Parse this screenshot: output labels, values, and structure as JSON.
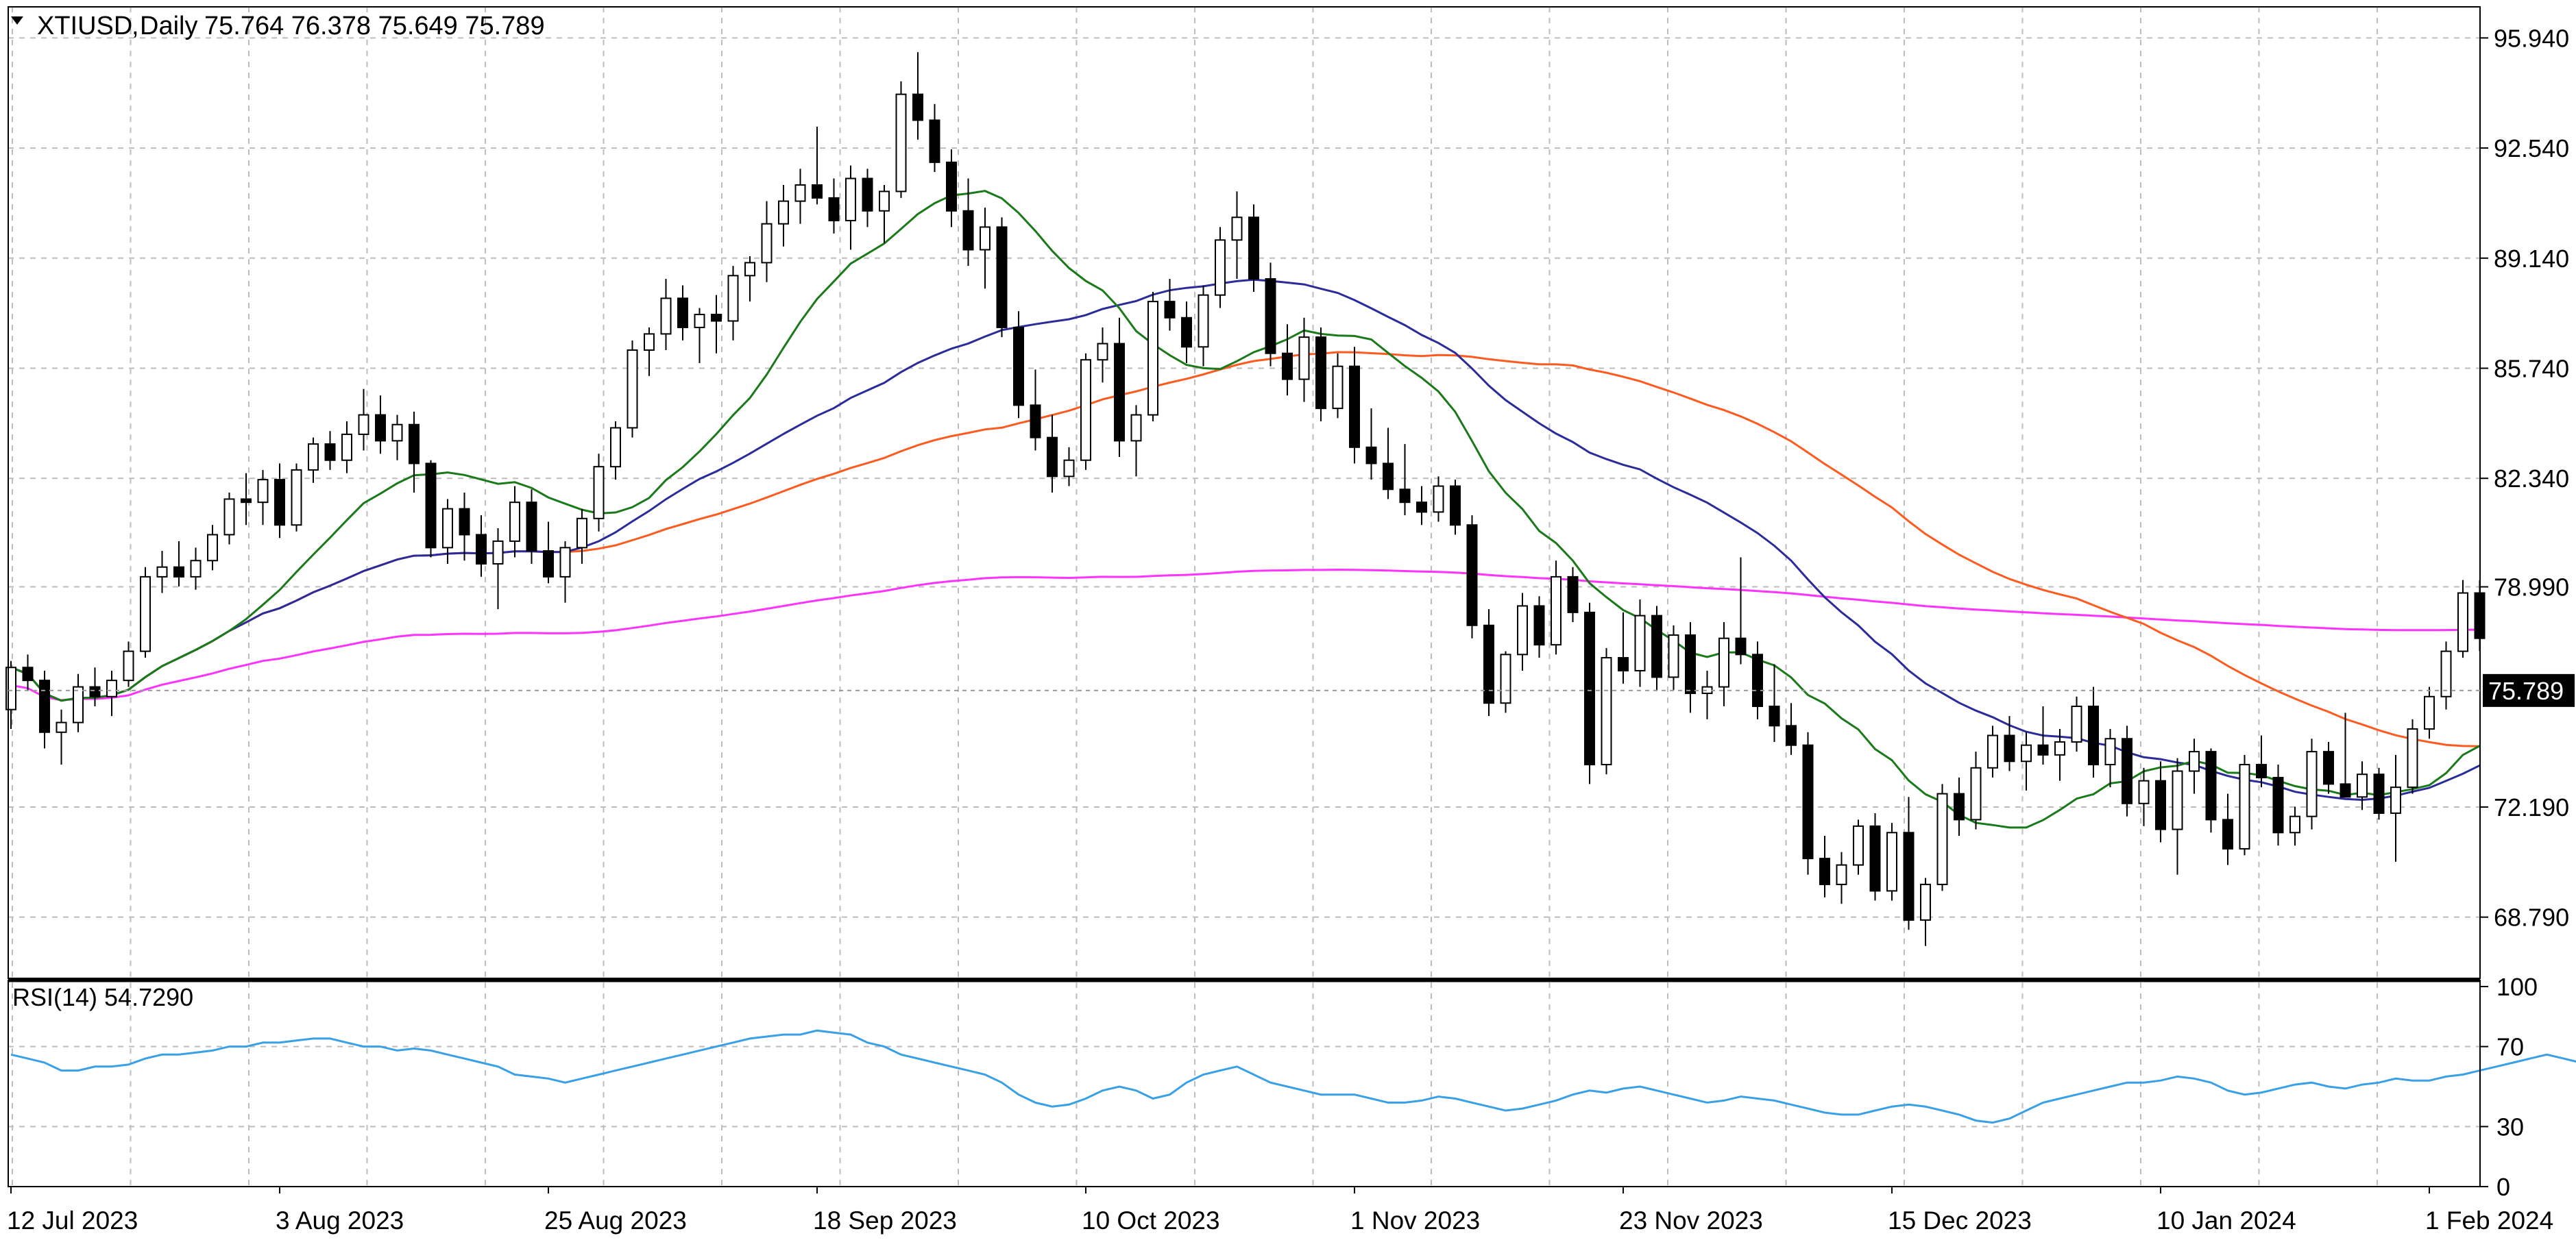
{
  "header": {
    "symbol": "XTIUSD",
    "timeframe": "Daily",
    "ohlc": "75.764 76.378 75.649 75.789"
  },
  "rsi_label": "RSI(14) 54.7290",
  "current_price": "75.789",
  "colors": {
    "bull": "#ffffff",
    "bear": "#000000",
    "wick": "#000000",
    "ma_fast": "#1a7a1a",
    "ma_medium": "#2b2b9a",
    "ma_slow": "#ff5a1f",
    "ma_long": "#ff33ff",
    "rsi": "#3aa0e6",
    "grid": "#bdbdbd"
  },
  "chart_data": [
    {
      "type": "candlestick",
      "yticks": [
        "95.940",
        "92.540",
        "89.140",
        "85.740",
        "82.340",
        "78.990",
        "72.190",
        "68.790"
      ],
      "ylim": [
        66.9,
        96.9
      ],
      "xlabels": [
        {
          "label": "12 Jul 2023",
          "index": 0
        },
        {
          "label": "3 Aug 2023",
          "index": 16
        },
        {
          "label": "25 Aug 2023",
          "index": 32
        },
        {
          "label": "18 Sep 2023",
          "index": 48
        },
        {
          "label": "10 Oct 2023",
          "index": 64
        },
        {
          "label": "1 Nov 2023",
          "index": 80
        },
        {
          "label": "23 Nov 2023",
          "index": 96
        },
        {
          "label": "15 Dec 2023",
          "index": 112
        },
        {
          "label": "10 Jan 2024",
          "index": 128
        },
        {
          "label": "1 Feb 2024",
          "index": 144
        }
      ],
      "candles": [
        [
          75.2,
          76.7,
          74.6,
          76.5
        ],
        [
          76.5,
          76.9,
          75.8,
          76.1
        ],
        [
          76.1,
          76.4,
          74.0,
          74.5
        ],
        [
          74.5,
          75.2,
          73.5,
          74.8
        ],
        [
          74.8,
          76.3,
          74.5,
          75.9
        ],
        [
          75.9,
          76.5,
          75.3,
          75.6
        ],
        [
          75.6,
          76.4,
          75.0,
          76.1
        ],
        [
          76.1,
          77.3,
          75.9,
          77.0
        ],
        [
          77.0,
          79.6,
          76.8,
          79.3
        ],
        [
          79.3,
          80.1,
          78.8,
          79.6
        ],
        [
          79.6,
          80.4,
          79.0,
          79.3
        ],
        [
          79.3,
          80.2,
          78.9,
          79.8
        ],
        [
          79.8,
          80.9,
          79.5,
          80.6
        ],
        [
          80.6,
          81.9,
          80.3,
          81.7
        ],
        [
          81.7,
          82.5,
          80.9,
          81.6
        ],
        [
          81.6,
          82.6,
          80.9,
          82.3
        ],
        [
          82.3,
          82.8,
          80.5,
          80.9
        ],
        [
          80.9,
          82.8,
          80.7,
          82.6
        ],
        [
          82.6,
          83.6,
          82.2,
          83.4
        ],
        [
          83.4,
          83.8,
          82.6,
          82.9
        ],
        [
          82.9,
          84.1,
          82.5,
          83.7
        ],
        [
          83.7,
          85.1,
          83.2,
          84.3
        ],
        [
          84.3,
          84.9,
          83.1,
          83.5
        ],
        [
          83.5,
          84.3,
          82.9,
          84.0
        ],
        [
          84.0,
          84.4,
          81.9,
          82.8
        ],
        [
          82.8,
          82.9,
          79.9,
          80.2
        ],
        [
          80.2,
          81.7,
          79.7,
          81.4
        ],
        [
          81.4,
          81.9,
          79.8,
          80.6
        ],
        [
          80.6,
          81.2,
          79.3,
          79.7
        ],
        [
          79.7,
          80.8,
          78.3,
          80.4
        ],
        [
          80.4,
          82.1,
          79.9,
          81.6
        ],
        [
          81.6,
          82.0,
          79.7,
          80.1
        ],
        [
          80.1,
          81.0,
          79.1,
          79.3
        ],
        [
          79.3,
          80.4,
          78.5,
          80.2
        ],
        [
          80.2,
          81.4,
          79.7,
          81.1
        ],
        [
          81.1,
          83.1,
          80.7,
          82.7
        ],
        [
          82.7,
          84.1,
          82.3,
          83.9
        ],
        [
          83.9,
          86.6,
          83.6,
          86.3
        ],
        [
          86.3,
          87.0,
          85.5,
          86.8
        ],
        [
          86.8,
          88.5,
          86.3,
          87.9
        ],
        [
          87.9,
          88.3,
          86.6,
          87.0
        ],
        [
          87.0,
          87.6,
          85.9,
          87.4
        ],
        [
          87.4,
          88.0,
          86.2,
          87.2
        ],
        [
          87.2,
          88.9,
          86.6,
          88.6
        ],
        [
          88.6,
          89.2,
          87.8,
          89.0
        ],
        [
          89.0,
          90.9,
          88.4,
          90.2
        ],
        [
          90.2,
          91.4,
          89.5,
          90.9
        ],
        [
          90.9,
          91.9,
          90.2,
          91.4
        ],
        [
          91.4,
          93.2,
          90.8,
          91.0
        ],
        [
          91.0,
          91.6,
          89.9,
          90.3
        ],
        [
          90.3,
          92.0,
          89.4,
          91.6
        ],
        [
          91.6,
          91.9,
          90.1,
          90.6
        ],
        [
          90.6,
          91.4,
          89.6,
          91.2
        ],
        [
          91.2,
          94.6,
          91.0,
          94.2
        ],
        [
          94.2,
          95.5,
          92.8,
          93.4
        ],
        [
          93.4,
          93.9,
          91.8,
          92.1
        ],
        [
          92.1,
          92.5,
          90.1,
          90.6
        ],
        [
          90.6,
          91.6,
          88.9,
          89.4
        ],
        [
          89.4,
          90.7,
          88.2,
          90.1
        ],
        [
          90.1,
          90.4,
          86.7,
          87.0
        ],
        [
          87.0,
          87.5,
          84.2,
          84.6
        ],
        [
          84.6,
          85.7,
          83.2,
          83.6
        ],
        [
          83.6,
          84.3,
          81.9,
          82.4
        ],
        [
          82.4,
          83.3,
          82.1,
          82.9
        ],
        [
          82.9,
          86.2,
          82.6,
          86.0
        ],
        [
          86.0,
          87.0,
          85.3,
          86.5
        ],
        [
          86.5,
          87.3,
          83.0,
          83.5
        ],
        [
          83.5,
          84.6,
          82.4,
          84.3
        ],
        [
          84.3,
          88.1,
          84.1,
          87.8
        ],
        [
          87.8,
          88.5,
          86.9,
          87.3
        ],
        [
          87.3,
          87.8,
          85.9,
          86.4
        ],
        [
          86.4,
          88.3,
          85.8,
          88.0
        ],
        [
          88.0,
          90.1,
          87.6,
          89.7
        ],
        [
          89.7,
          91.2,
          88.5,
          90.4
        ],
        [
          90.4,
          90.8,
          88.1,
          88.5
        ],
        [
          88.5,
          89.0,
          85.8,
          86.2
        ],
        [
          86.2,
          87.1,
          84.9,
          85.4
        ],
        [
          85.4,
          87.3,
          84.7,
          86.7
        ],
        [
          86.7,
          87.0,
          84.1,
          84.5
        ],
        [
          84.5,
          86.2,
          84.2,
          85.8
        ],
        [
          85.8,
          86.4,
          82.8,
          83.3
        ],
        [
          83.3,
          84.5,
          82.3,
          82.8
        ],
        [
          82.8,
          83.9,
          81.7,
          82.0
        ],
        [
          82.0,
          83.4,
          81.2,
          81.6
        ],
        [
          81.6,
          82.1,
          80.9,
          81.3
        ],
        [
          81.3,
          82.4,
          81.0,
          82.1
        ],
        [
          82.1,
          82.3,
          80.6,
          80.9
        ],
        [
          80.9,
          81.2,
          77.4,
          77.8
        ],
        [
          77.8,
          78.3,
          75.0,
          75.4
        ],
        [
          75.4,
          77.0,
          75.1,
          76.9
        ],
        [
          76.9,
          78.8,
          76.4,
          78.4
        ],
        [
          78.4,
          78.7,
          76.8,
          77.2
        ],
        [
          77.2,
          79.8,
          76.9,
          79.3
        ],
        [
          79.3,
          79.6,
          77.9,
          78.2
        ],
        [
          78.2,
          78.5,
          72.9,
          73.5
        ],
        [
          73.5,
          77.1,
          73.2,
          76.8
        ],
        [
          76.8,
          78.2,
          76.0,
          76.4
        ],
        [
          76.4,
          78.6,
          75.9,
          78.1
        ],
        [
          78.1,
          78.4,
          75.8,
          76.2
        ],
        [
          76.2,
          77.8,
          75.8,
          77.5
        ],
        [
          77.5,
          77.9,
          75.1,
          75.7
        ],
        [
          75.7,
          76.4,
          74.9,
          75.9
        ],
        [
          75.9,
          77.9,
          75.3,
          77.4
        ],
        [
          77.4,
          79.9,
          76.6,
          76.9
        ],
        [
          76.9,
          77.3,
          74.9,
          75.3
        ],
        [
          75.3,
          76.6,
          74.2,
          74.7
        ],
        [
          74.7,
          75.4,
          73.8,
          74.1
        ],
        [
          74.1,
          74.5,
          70.1,
          70.6
        ],
        [
          70.6,
          71.3,
          69.4,
          69.8
        ],
        [
          69.8,
          70.8,
          69.2,
          70.4
        ],
        [
          70.4,
          71.8,
          70.1,
          71.6
        ],
        [
          71.6,
          72.0,
          69.3,
          69.6
        ],
        [
          69.6,
          71.7,
          69.3,
          71.4
        ],
        [
          71.4,
          72.5,
          68.4,
          68.7
        ],
        [
          68.7,
          70.0,
          67.9,
          69.8
        ],
        [
          69.8,
          72.9,
          69.6,
          72.6
        ],
        [
          72.6,
          73.1,
          71.3,
          71.8
        ],
        [
          71.8,
          73.9,
          71.5,
          73.4
        ],
        [
          73.4,
          74.7,
          73.1,
          74.4
        ],
        [
          74.4,
          75.0,
          73.3,
          73.6
        ],
        [
          73.6,
          74.5,
          72.7,
          74.1
        ],
        [
          74.1,
          75.3,
          73.5,
          73.8
        ],
        [
          73.8,
          74.6,
          73.0,
          74.2
        ],
        [
          74.2,
          75.6,
          73.9,
          75.3
        ],
        [
          75.3,
          75.9,
          73.1,
          73.5
        ],
        [
          73.5,
          74.6,
          72.8,
          74.3
        ],
        [
          74.3,
          74.7,
          71.9,
          72.3
        ],
        [
          72.3,
          73.4,
          71.6,
          73.0
        ],
        [
          73.0,
          73.6,
          71.1,
          71.5
        ],
        [
          71.5,
          73.7,
          70.1,
          73.3
        ],
        [
          73.3,
          74.3,
          72.6,
          73.9
        ],
        [
          73.9,
          74.0,
          71.4,
          71.8
        ],
        [
          71.8,
          72.6,
          70.4,
          70.9
        ],
        [
          70.9,
          73.8,
          70.7,
          73.5
        ],
        [
          73.5,
          74.4,
          72.8,
          73.1
        ],
        [
          73.1,
          73.5,
          71.0,
          71.4
        ],
        [
          71.4,
          72.2,
          71.0,
          71.9
        ],
        [
          71.9,
          74.3,
          71.5,
          73.9
        ],
        [
          73.9,
          74.2,
          72.6,
          72.9
        ],
        [
          72.9,
          75.1,
          72.5,
          72.5
        ],
        [
          72.5,
          73.6,
          72.1,
          73.2
        ],
        [
          73.2,
          73.4,
          71.8,
          72.0
        ],
        [
          72.0,
          73.8,
          70.5,
          72.8
        ],
        [
          72.8,
          74.9,
          72.6,
          74.6
        ],
        [
          74.6,
          75.9,
          74.3,
          75.6
        ],
        [
          75.6,
          77.3,
          75.2,
          77.0
        ],
        [
          77.0,
          79.2,
          76.8,
          78.8
        ],
        [
          78.8,
          79.2,
          77.0,
          77.4
        ]
      ]
    },
    {
      "type": "line",
      "ylim": [
        0,
        100
      ],
      "yticks": [
        "100",
        "70",
        "30",
        "0"
      ],
      "rsi_series": [
        66,
        64,
        62,
        58,
        58,
        60,
        60,
        61,
        64,
        66,
        66,
        67,
        68,
        70,
        70,
        72,
        72,
        73,
        74,
        74,
        72,
        70,
        70,
        68,
        69,
        68,
        66,
        64,
        62,
        60,
        56,
        55,
        54,
        52,
        54,
        56,
        58,
        60,
        62,
        64,
        66,
        68,
        70,
        72,
        74,
        75,
        76,
        76,
        78,
        77,
        76,
        72,
        70,
        66,
        64,
        62,
        60,
        58,
        56,
        52,
        46,
        42,
        40,
        41,
        44,
        48,
        50,
        48,
        44,
        46,
        52,
        56,
        58,
        60,
        56,
        52,
        50,
        48,
        46,
        46,
        46,
        44,
        42,
        42,
        43,
        45,
        44,
        42,
        40,
        38,
        39,
        41,
        43,
        46,
        48,
        47,
        49,
        50,
        48,
        46,
        44,
        42,
        43,
        45,
        44,
        43,
        41,
        39,
        37,
        36,
        36,
        38,
        40,
        41,
        40,
        38,
        36,
        33,
        32,
        34,
        38,
        42,
        44,
        46,
        48,
        50,
        52,
        52,
        53,
        55,
        54,
        52,
        48,
        46,
        47,
        49,
        51,
        52,
        50,
        49,
        51,
        52,
        54,
        53,
        53,
        55,
        56,
        58,
        60,
        62,
        64,
        66,
        64,
        62,
        60,
        56,
        55
      ]
    }
  ]
}
